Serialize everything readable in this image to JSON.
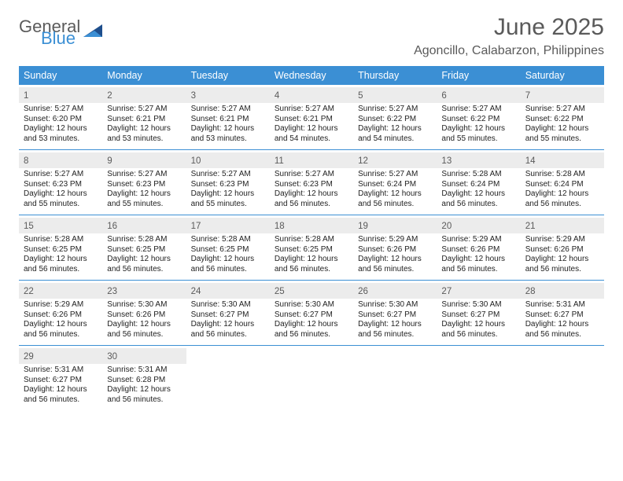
{
  "brand": {
    "word1": "General",
    "word2": "Blue"
  },
  "colors": {
    "accent": "#3b8fd4",
    "header_text": "#5a5a5a",
    "daynum_bg": "#ececec",
    "body_text": "#222222",
    "white": "#ffffff"
  },
  "title": "June 2025",
  "location": "Agoncillo, Calabarzon, Philippines",
  "weekdays": [
    "Sunday",
    "Monday",
    "Tuesday",
    "Wednesday",
    "Thursday",
    "Friday",
    "Saturday"
  ],
  "days": [
    {
      "n": "1",
      "sr": "5:27 AM",
      "ss": "6:20 PM",
      "dl": "12 hours and 53 minutes."
    },
    {
      "n": "2",
      "sr": "5:27 AM",
      "ss": "6:21 PM",
      "dl": "12 hours and 53 minutes."
    },
    {
      "n": "3",
      "sr": "5:27 AM",
      "ss": "6:21 PM",
      "dl": "12 hours and 53 minutes."
    },
    {
      "n": "4",
      "sr": "5:27 AM",
      "ss": "6:21 PM",
      "dl": "12 hours and 54 minutes."
    },
    {
      "n": "5",
      "sr": "5:27 AM",
      "ss": "6:22 PM",
      "dl": "12 hours and 54 minutes."
    },
    {
      "n": "6",
      "sr": "5:27 AM",
      "ss": "6:22 PM",
      "dl": "12 hours and 55 minutes."
    },
    {
      "n": "7",
      "sr": "5:27 AM",
      "ss": "6:22 PM",
      "dl": "12 hours and 55 minutes."
    },
    {
      "n": "8",
      "sr": "5:27 AM",
      "ss": "6:23 PM",
      "dl": "12 hours and 55 minutes."
    },
    {
      "n": "9",
      "sr": "5:27 AM",
      "ss": "6:23 PM",
      "dl": "12 hours and 55 minutes."
    },
    {
      "n": "10",
      "sr": "5:27 AM",
      "ss": "6:23 PM",
      "dl": "12 hours and 55 minutes."
    },
    {
      "n": "11",
      "sr": "5:27 AM",
      "ss": "6:23 PM",
      "dl": "12 hours and 56 minutes."
    },
    {
      "n": "12",
      "sr": "5:27 AM",
      "ss": "6:24 PM",
      "dl": "12 hours and 56 minutes."
    },
    {
      "n": "13",
      "sr": "5:28 AM",
      "ss": "6:24 PM",
      "dl": "12 hours and 56 minutes."
    },
    {
      "n": "14",
      "sr": "5:28 AM",
      "ss": "6:24 PM",
      "dl": "12 hours and 56 minutes."
    },
    {
      "n": "15",
      "sr": "5:28 AM",
      "ss": "6:25 PM",
      "dl": "12 hours and 56 minutes."
    },
    {
      "n": "16",
      "sr": "5:28 AM",
      "ss": "6:25 PM",
      "dl": "12 hours and 56 minutes."
    },
    {
      "n": "17",
      "sr": "5:28 AM",
      "ss": "6:25 PM",
      "dl": "12 hours and 56 minutes."
    },
    {
      "n": "18",
      "sr": "5:28 AM",
      "ss": "6:25 PM",
      "dl": "12 hours and 56 minutes."
    },
    {
      "n": "19",
      "sr": "5:29 AM",
      "ss": "6:26 PM",
      "dl": "12 hours and 56 minutes."
    },
    {
      "n": "20",
      "sr": "5:29 AM",
      "ss": "6:26 PM",
      "dl": "12 hours and 56 minutes."
    },
    {
      "n": "21",
      "sr": "5:29 AM",
      "ss": "6:26 PM",
      "dl": "12 hours and 56 minutes."
    },
    {
      "n": "22",
      "sr": "5:29 AM",
      "ss": "6:26 PM",
      "dl": "12 hours and 56 minutes."
    },
    {
      "n": "23",
      "sr": "5:30 AM",
      "ss": "6:26 PM",
      "dl": "12 hours and 56 minutes."
    },
    {
      "n": "24",
      "sr": "5:30 AM",
      "ss": "6:27 PM",
      "dl": "12 hours and 56 minutes."
    },
    {
      "n": "25",
      "sr": "5:30 AM",
      "ss": "6:27 PM",
      "dl": "12 hours and 56 minutes."
    },
    {
      "n": "26",
      "sr": "5:30 AM",
      "ss": "6:27 PM",
      "dl": "12 hours and 56 minutes."
    },
    {
      "n": "27",
      "sr": "5:30 AM",
      "ss": "6:27 PM",
      "dl": "12 hours and 56 minutes."
    },
    {
      "n": "28",
      "sr": "5:31 AM",
      "ss": "6:27 PM",
      "dl": "12 hours and 56 minutes."
    },
    {
      "n": "29",
      "sr": "5:31 AM",
      "ss": "6:27 PM",
      "dl": "12 hours and 56 minutes."
    },
    {
      "n": "30",
      "sr": "5:31 AM",
      "ss": "6:28 PM",
      "dl": "12 hours and 56 minutes."
    }
  ],
  "labels": {
    "sunrise": "Sunrise: ",
    "sunset": "Sunset: ",
    "daylight": "Daylight: "
  },
  "layout": {
    "cols": 7,
    "rows": 5,
    "start_weekday": 0,
    "total_days": 30
  }
}
